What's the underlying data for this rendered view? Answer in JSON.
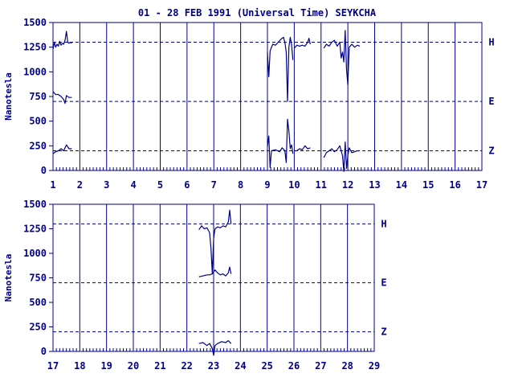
{
  "title": "01 - 28 FEB 1991 (Universal Time) SEYKCHA",
  "colors": {
    "ink": "#00008b",
    "background": "#ffffff"
  },
  "chart_data": [
    {
      "type": "line",
      "ylabel": "Nanotesla",
      "xlim": [
        1,
        17
      ],
      "ylim": [
        0,
        1500
      ],
      "x_ticks": [
        "1",
        "2",
        "3",
        "4",
        "5",
        "6",
        "7",
        "8",
        "9",
        "10",
        "11",
        "12",
        "13",
        "14",
        "15",
        "16",
        "17"
      ],
      "y_ticks": [
        "1500",
        "1250",
        "1000",
        "750",
        "500",
        "250",
        "0"
      ],
      "y_tick_values": [
        1500,
        1250,
        1000,
        750,
        500,
        250,
        0
      ],
      "baselines": [
        {
          "name": "H",
          "value": 1300
        },
        {
          "name": "E",
          "value": 700
        },
        {
          "name": "Z",
          "value": 200
        }
      ],
      "series": [
        {
          "name": "H",
          "segments": [
            [
              [
                1.0,
                1230
              ],
              [
                1.05,
                1300
              ],
              [
                1.1,
                1250
              ],
              [
                1.15,
                1280
              ],
              [
                1.2,
                1260
              ],
              [
                1.25,
                1310
              ],
              [
                1.3,
                1270
              ],
              [
                1.35,
                1290
              ],
              [
                1.4,
                1280
              ],
              [
                1.45,
                1320
              ],
              [
                1.5,
                1410
              ],
              [
                1.55,
                1300
              ],
              [
                1.6,
                1290
              ],
              [
                1.65,
                1300
              ],
              [
                1.7,
                1290
              ]
            ],
            [
              [
                9.0,
                1200
              ],
              [
                9.05,
                950
              ],
              [
                9.1,
                1210
              ],
              [
                9.15,
                1250
              ],
              [
                9.2,
                1280
              ],
              [
                9.3,
                1270
              ],
              [
                9.4,
                1300
              ],
              [
                9.5,
                1330
              ],
              [
                9.6,
                1350
              ],
              [
                9.65,
                1300
              ],
              [
                9.7,
                1200
              ],
              [
                9.75,
                700
              ],
              [
                9.8,
                1250
              ],
              [
                9.85,
                1350
              ],
              [
                9.9,
                1280
              ],
              [
                9.95,
                1120
              ]
            ],
            [
              [
                10.0,
                1240
              ],
              [
                10.1,
                1270
              ],
              [
                10.2,
                1260
              ],
              [
                10.3,
                1270
              ],
              [
                10.4,
                1260
              ],
              [
                10.5,
                1300
              ],
              [
                10.55,
                1340
              ],
              [
                10.6,
                1280
              ]
            ],
            [
              [
                11.1,
                1240
              ],
              [
                11.2,
                1280
              ],
              [
                11.3,
                1260
              ],
              [
                11.4,
                1300
              ],
              [
                11.5,
                1320
              ],
              [
                11.6,
                1260
              ],
              [
                11.7,
                1300
              ],
              [
                11.75,
                1140
              ],
              [
                11.8,
                1200
              ],
              [
                11.85,
                1100
              ],
              [
                11.9,
                1420
              ],
              [
                11.95,
                1020
              ],
              [
                12.0,
                870
              ],
              [
                12.05,
                1250
              ],
              [
                12.15,
                1280
              ],
              [
                12.25,
                1250
              ],
              [
                12.35,
                1270
              ],
              [
                12.45,
                1260
              ]
            ]
          ]
        },
        {
          "name": "E",
          "segments": [
            [
              [
                1.0,
                800
              ],
              [
                1.1,
                770
              ],
              [
                1.2,
                770
              ],
              [
                1.3,
                750
              ],
              [
                1.4,
                720
              ],
              [
                1.45,
                680
              ],
              [
                1.5,
                760
              ],
              [
                1.6,
                740
              ],
              [
                1.7,
                740
              ]
            ]
          ]
        },
        {
          "name": "Z",
          "segments": [
            [
              [
                1.0,
                170
              ],
              [
                1.1,
                190
              ],
              [
                1.2,
                200
              ],
              [
                1.3,
                220
              ],
              [
                1.4,
                200
              ],
              [
                1.5,
                260
              ],
              [
                1.6,
                220
              ],
              [
                1.7,
                220
              ]
            ],
            [
              [
                9.0,
                240
              ],
              [
                9.05,
                350
              ],
              [
                9.1,
                30
              ],
              [
                9.15,
                200
              ],
              [
                9.3,
                210
              ],
              [
                9.45,
                190
              ],
              [
                9.55,
                230
              ],
              [
                9.65,
                200
              ],
              [
                9.7,
                80
              ],
              [
                9.75,
                520
              ],
              [
                9.8,
                400
              ],
              [
                9.85,
                220
              ],
              [
                9.9,
                260
              ],
              [
                9.95,
                170
              ]
            ],
            [
              [
                10.0,
                200
              ],
              [
                10.1,
                200
              ],
              [
                10.2,
                220
              ],
              [
                10.3,
                210
              ],
              [
                10.4,
                250
              ],
              [
                10.5,
                220
              ],
              [
                10.6,
                230
              ]
            ],
            [
              [
                11.1,
                130
              ],
              [
                11.2,
                180
              ],
              [
                11.3,
                200
              ],
              [
                11.4,
                220
              ],
              [
                11.5,
                190
              ],
              [
                11.6,
                210
              ],
              [
                11.7,
                250
              ],
              [
                11.8,
                150
              ],
              [
                11.85,
                -10
              ],
              [
                11.9,
                290
              ],
              [
                11.95,
                20
              ],
              [
                12.0,
                150
              ],
              [
                12.05,
                230
              ],
              [
                12.15,
                180
              ],
              [
                12.25,
                190
              ],
              [
                12.35,
                200
              ],
              [
                12.45,
                200
              ]
            ]
          ]
        }
      ]
    },
    {
      "type": "line",
      "ylabel": "Nanotesla",
      "xlim": [
        17,
        29
      ],
      "ylim": [
        0,
        1500
      ],
      "x_ticks": [
        "17",
        "18",
        "19",
        "20",
        "21",
        "22",
        "23",
        "24",
        "25",
        "26",
        "27",
        "28",
        "29"
      ],
      "y_ticks": [
        "1500",
        "1250",
        "1000",
        "750",
        "500",
        "250",
        "0"
      ],
      "y_tick_values": [
        1500,
        1250,
        1000,
        750,
        500,
        250,
        0
      ],
      "baselines": [
        {
          "name": "H",
          "value": 1300
        },
        {
          "name": "E",
          "value": 700
        },
        {
          "name": "Z",
          "value": 200
        }
      ],
      "series": [
        {
          "name": "H",
          "segments": [
            [
              [
                22.45,
                1240
              ],
              [
                22.55,
                1280
              ],
              [
                22.65,
                1250
              ],
              [
                22.75,
                1260
              ],
              [
                22.85,
                1210
              ],
              [
                22.9,
                1050
              ],
              [
                22.95,
                800
              ],
              [
                23.0,
                1150
              ],
              [
                23.05,
                1250
              ],
              [
                23.15,
                1270
              ],
              [
                23.25,
                1260
              ],
              [
                23.35,
                1280
              ],
              [
                23.45,
                1270
              ],
              [
                23.55,
                1320
              ],
              [
                23.6,
                1440
              ],
              [
                23.65,
                1300
              ]
            ]
          ]
        },
        {
          "name": "E",
          "segments": [
            [
              [
                22.45,
                760
              ],
              [
                22.6,
                770
              ],
              [
                22.75,
                780
              ],
              [
                22.85,
                780
              ],
              [
                22.95,
                790
              ],
              [
                23.05,
                830
              ],
              [
                23.15,
                800
              ],
              [
                23.25,
                780
              ],
              [
                23.35,
                790
              ],
              [
                23.45,
                770
              ],
              [
                23.55,
                800
              ],
              [
                23.6,
                860
              ],
              [
                23.65,
                790
              ]
            ]
          ]
        },
        {
          "name": "Z",
          "segments": [
            [
              [
                22.45,
                80
              ],
              [
                22.6,
                90
              ],
              [
                22.75,
                60
              ],
              [
                22.85,
                80
              ],
              [
                22.95,
                30
              ],
              [
                23.0,
                -40
              ],
              [
                23.05,
                60
              ],
              [
                23.15,
                80
              ],
              [
                23.3,
                100
              ],
              [
                23.45,
                90
              ],
              [
                23.55,
                110
              ],
              [
                23.65,
                80
              ]
            ]
          ]
        }
      ]
    }
  ]
}
